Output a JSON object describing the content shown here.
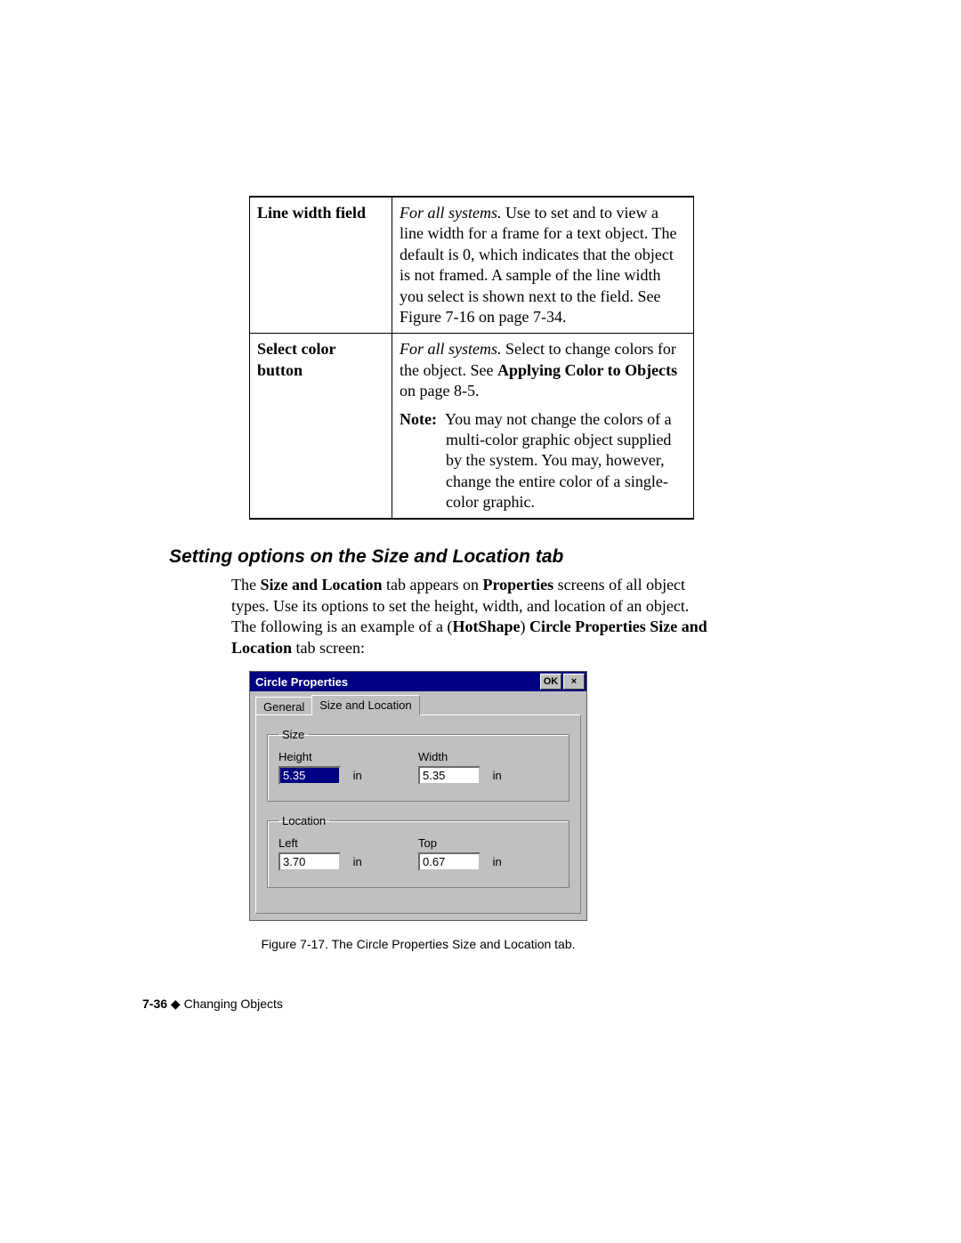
{
  "table": {
    "rows": [
      {
        "label": "Line width field",
        "body_html": "<span class='ital'>For all systems.</span> Use to set and to view a line width for a frame for a text object. The default is 0, which indicates that the object is not framed. A sample of the line width you select is shown next to the field. See Figure 7-16 on page 7-34."
      },
      {
        "label": "Select color button",
        "body_html": "<span class='ital'>For all systems.</span> Select to change colors for the object. See <span class='bold'>Applying Color to Objects</span> on page 8-5.<div class='note-block'><span class='bold'>Note:</span>&nbsp;&nbsp;You may not change the colors of a multi-color graphic object supplied by the system. You may, however, change the entire color of a single-color graphic.</div>"
      }
    ]
  },
  "section_heading": "Setting options on the Size and Location tab",
  "section_body_html": "The <span class='bold'>Size and Location</span> tab appears on <span class='bold'>Properties</span> screens of all object types. Use its options to set the height, width, and location of an object. The following is an example of a (<span class='bold'>HotShape</span>) <span class='bold'>Circle Properties Size and Location</span> tab screen:",
  "dialog": {
    "title": "Circle Properties",
    "ok_label": "OK",
    "close_label": "×",
    "tabs": {
      "general": "General",
      "sizeloc": "Size and Location"
    },
    "size": {
      "legend": "Size",
      "height_label": "Height",
      "height_value": "5.35",
      "width_label": "Width",
      "width_value": "5.35",
      "unit": "in"
    },
    "location": {
      "legend": "Location",
      "left_label": "Left",
      "left_value": "3.70",
      "top_label": "Top",
      "top_value": "0.67",
      "unit": "in"
    }
  },
  "caption": "Figure 7-17. The Circle Properties Size and Location tab.",
  "footer": {
    "page": "7-36",
    "diamond": " ◆ ",
    "chapter": "Changing Objects"
  }
}
